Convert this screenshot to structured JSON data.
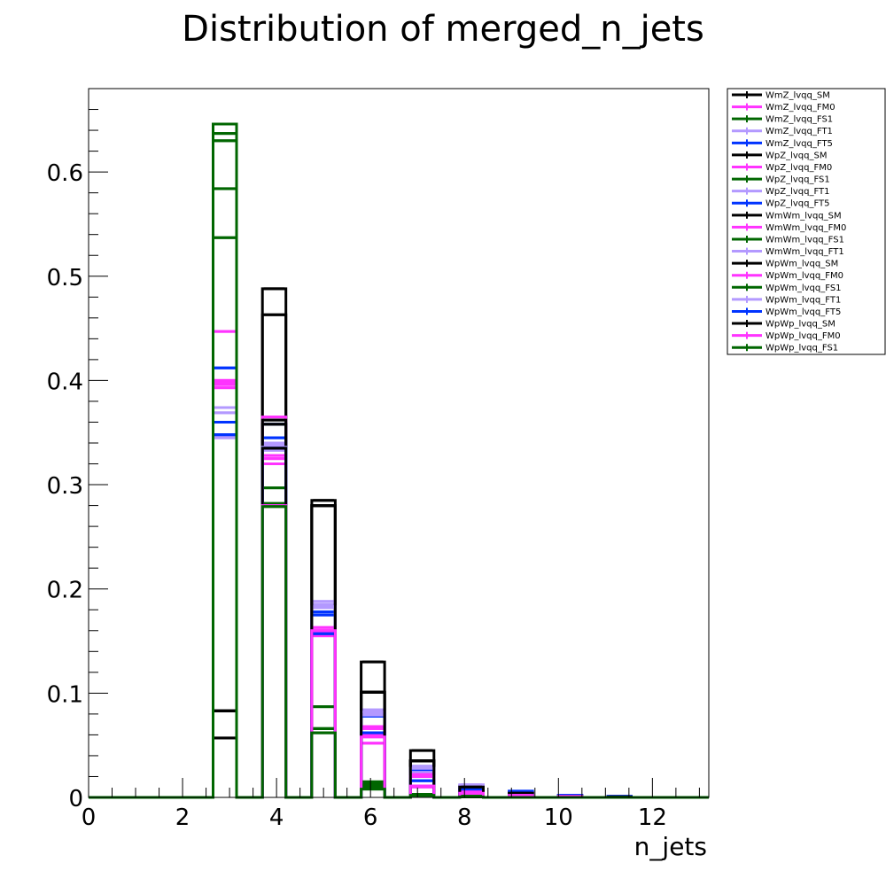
{
  "chart_data": {
    "type": "bar",
    "title": "Distribution of merged_n_jets",
    "xlabel": "n_jets",
    "ylabel": "",
    "xlim": [
      0,
      13.2
    ],
    "ylim": [
      0,
      0.68
    ],
    "x_ticks": [
      "0",
      "2",
      "4",
      "6",
      "8",
      "10",
      "12"
    ],
    "y_ticks": [
      "0",
      "0.1",
      "0.2",
      "0.3",
      "0.4",
      "0.5",
      "0.6"
    ],
    "bin_edges": [
      2.65,
      3.15,
      3.7,
      4.2,
      4.75,
      5.25,
      5.8,
      6.3,
      6.85,
      7.35,
      7.9,
      8.4,
      8.95,
      9.45,
      10.0,
      10.5,
      11.05,
      11.55,
      12.1,
      12.6,
      13.2
    ],
    "categories": [
      "3",
      "4",
      "5",
      "6",
      "7",
      "8",
      "9",
      "10",
      "11",
      "12"
    ],
    "legend_position": "top-right",
    "series": [
      {
        "name": "WmZ_lvqq_SM",
        "color": "#000000",
        "values": [
          0.083,
          0.463,
          0.28,
          0.101,
          0.035,
          0.01,
          0.004,
          0.001,
          0.0005,
          0.0
        ]
      },
      {
        "name": "WmZ_lvqq_FM0",
        "color": "#ff33ff",
        "values": [
          0.447,
          0.32,
          0.16,
          0.052,
          0.01,
          0.004,
          0.002,
          0.001,
          0.0,
          0.0
        ]
      },
      {
        "name": "WmZ_lvqq_FS1",
        "color": "#006600",
        "values": [
          0.63,
          0.282,
          0.066,
          0.014,
          0.003,
          0.001,
          0.0005,
          0.0,
          0.0,
          0.0
        ]
      },
      {
        "name": "WmZ_lvqq_FT1",
        "color": "#b399ff",
        "values": [
          0.374,
          0.34,
          0.185,
          0.084,
          0.03,
          0.012,
          0.004,
          0.002,
          0.001,
          0.0
        ]
      },
      {
        "name": "WmZ_lvqq_FT5",
        "color": "#0033ff",
        "values": [
          0.412,
          0.358,
          0.178,
          0.08,
          0.026,
          0.01,
          0.005,
          0.002,
          0.001,
          0.0
        ]
      },
      {
        "name": "WpZ_lvqq_SM",
        "color": "#000000",
        "values": [
          0.057,
          0.488,
          0.285,
          0.13,
          0.045,
          0.011,
          0.005,
          0.001,
          0.0005,
          0.0
        ]
      },
      {
        "name": "WpZ_lvqq_FM0",
        "color": "#ff33ff",
        "values": [
          0.4,
          0.365,
          0.163,
          0.068,
          0.023,
          0.006,
          0.002,
          0.001,
          0.0,
          0.0
        ]
      },
      {
        "name": "WpZ_lvqq_FS1",
        "color": "#006600",
        "values": [
          0.646,
          0.28,
          0.062,
          0.01,
          0.002,
          0.0005,
          0.0,
          0.0,
          0.0,
          0.0
        ]
      },
      {
        "name": "WpZ_lvqq_FT1",
        "color": "#b399ff",
        "values": [
          0.369,
          0.338,
          0.188,
          0.08,
          0.024,
          0.011,
          0.004,
          0.002,
          0.001,
          0.0
        ]
      },
      {
        "name": "WpZ_lvqq_FT5",
        "color": "#0033ff",
        "values": [
          0.36,
          0.345,
          0.175,
          0.078,
          0.02,
          0.008,
          0.006,
          0.002,
          0.001,
          0.0
        ]
      },
      {
        "name": "WmWm_lvqq_SM",
        "color": "#000000",
        "values": [
          0.083,
          0.362,
          0.28,
          0.101,
          0.035,
          0.01,
          0.004,
          0.001,
          0.0005,
          0.0
        ]
      },
      {
        "name": "WmWm_lvqq_FM0",
        "color": "#ff33ff",
        "values": [
          0.396,
          0.328,
          0.158,
          0.066,
          0.022,
          0.006,
          0.002,
          0.001,
          0.0,
          0.0
        ]
      },
      {
        "name": "WmWm_lvqq_FS1",
        "color": "#006600",
        "values": [
          0.637,
          0.297,
          0.087,
          0.015,
          0.002,
          0.001,
          0.0,
          0.0,
          0.0,
          0.0
        ]
      },
      {
        "name": "WmWm_lvqq_FT1",
        "color": "#b399ff",
        "values": [
          0.347,
          0.333,
          0.182,
          0.079,
          0.028,
          0.012,
          0.004,
          0.002,
          0.001,
          0.0
        ]
      },
      {
        "name": "WpWm_lvqq_SM",
        "color": "#000000",
        "values": [
          0.083,
          0.358,
          0.28,
          0.101,
          0.035,
          0.01,
          0.004,
          0.001,
          0.0005,
          0.0
        ]
      },
      {
        "name": "WpWm_lvqq_FM0",
        "color": "#ff33ff",
        "values": [
          0.393,
          0.325,
          0.155,
          0.06,
          0.02,
          0.005,
          0.002,
          0.001,
          0.0,
          0.0
        ]
      },
      {
        "name": "WpWm_lvqq_FS1",
        "color": "#006600",
        "values": [
          0.584,
          0.335,
          0.066,
          0.012,
          0.002,
          0.001,
          0.0,
          0.0,
          0.0,
          0.0
        ]
      },
      {
        "name": "WpWm_lvqq_FT1",
        "color": "#b399ff",
        "values": [
          0.345,
          0.336,
          0.183,
          0.082,
          0.028,
          0.012,
          0.004,
          0.002,
          0.001,
          0.0
        ]
      },
      {
        "name": "WpWm_lvqq_FT5",
        "color": "#0033ff",
        "values": [
          0.348,
          0.335,
          0.157,
          0.062,
          0.016,
          0.008,
          0.004,
          0.002,
          0.001,
          0.0
        ]
      },
      {
        "name": "WpWp_lvqq_SM",
        "color": "#000000",
        "values": [
          0.083,
          0.335,
          0.28,
          0.101,
          0.035,
          0.01,
          0.004,
          0.001,
          0.0005,
          0.0
        ]
      },
      {
        "name": "WpWp_lvqq_FM0",
        "color": "#ff33ff",
        "values": [
          0.398,
          0.28,
          0.16,
          0.058,
          0.011,
          0.004,
          0.002,
          0.001,
          0.0,
          0.0
        ]
      },
      {
        "name": "WpWp_lvqq_FS1",
        "color": "#006600",
        "values": [
          0.537,
          0.279,
          0.062,
          0.008,
          0.002,
          0.0005,
          0.0,
          0.0,
          0.0,
          0.0
        ]
      }
    ]
  }
}
